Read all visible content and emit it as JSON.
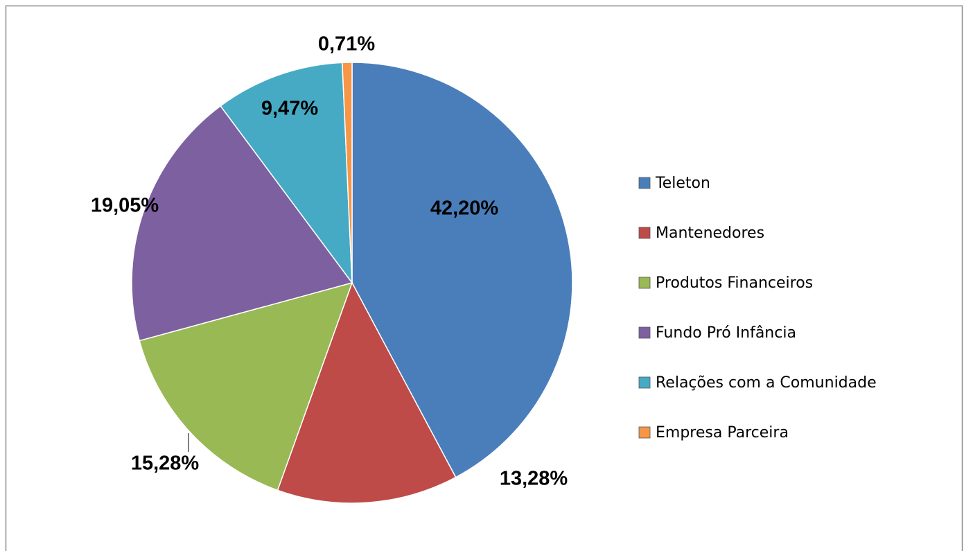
{
  "chart_data": {
    "type": "pie",
    "categories": [
      "Teleton",
      "Mantenedores",
      "Produtos Financeiros",
      "Fundo Pró Infância",
      "Relações com a Comunidade",
      "Empresa Parceira"
    ],
    "values": [
      42.2,
      13.28,
      15.28,
      19.05,
      9.47,
      0.71
    ],
    "value_labels": [
      "42,20%",
      "13,28%",
      "15,28%",
      "19,05%",
      "9,47%",
      "0,71%"
    ],
    "colors": [
      "#4a7ebb",
      "#be4b48",
      "#98b954",
      "#7d60a0",
      "#46aac5",
      "#f79646"
    ],
    "legend": "right"
  }
}
